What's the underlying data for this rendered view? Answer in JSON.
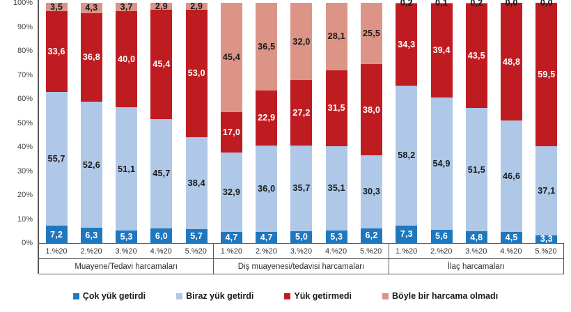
{
  "chart_data": {
    "type": "bar",
    "subtype": "stacked-100-percent",
    "title": "",
    "xlabel": "",
    "ylabel": "",
    "y_axis": {
      "min": 0,
      "max": 100,
      "step": 10,
      "grid": false,
      "tick_labels": [
        "100%",
        "90%",
        "80%",
        "70%",
        "60%",
        "50%",
        "40%",
        "30%",
        "20%",
        "10%",
        "0%"
      ]
    },
    "categories": [
      "1.%20",
      "2.%20",
      "3.%20",
      "4.%20",
      "5.%20"
    ],
    "series": [
      {
        "name": "Çok yük getirdi",
        "color": "#1f78be",
        "label_color": "#ffffff"
      },
      {
        "name": "Biraz yük getirdi",
        "color": "#afc8e8",
        "label_color": "#1a1a1a"
      },
      {
        "name": "Yük getirmedi",
        "color": "#bf1c22",
        "label_color": "#ffffff"
      },
      {
        "name": "Böyle bir harcama olmadı",
        "color": "#dc9486",
        "label_color": "#1a1a1a"
      }
    ],
    "groups": [
      {
        "label": "Muayene/Tedavi harcamaları",
        "values": [
          [
            7.2,
            55.7,
            33.6,
            3.5
          ],
          [
            6.3,
            52.6,
            36.8,
            4.3
          ],
          [
            5.3,
            51.1,
            40.0,
            3.7
          ],
          [
            6.0,
            45.7,
            45.4,
            2.9
          ],
          [
            5.7,
            38.4,
            53.0,
            2.9
          ]
        ]
      },
      {
        "label": "Diş muayenesi/tedavisi harcamaları",
        "values": [
          [
            4.7,
            32.9,
            17.0,
            45.4
          ],
          [
            4.7,
            36.0,
            22.9,
            36.5
          ],
          [
            5.0,
            35.7,
            27.2,
            32.0
          ],
          [
            5.3,
            35.1,
            31.5,
            28.1
          ],
          [
            6.2,
            30.3,
            38.0,
            25.5
          ]
        ]
      },
      {
        "label": "İlaç harcamaları",
        "values": [
          [
            7.3,
            58.2,
            34.3,
            0.2
          ],
          [
            5.6,
            54.9,
            39.4,
            0.1
          ],
          [
            4.8,
            51.5,
            43.5,
            0.2
          ],
          [
            4.5,
            46.6,
            48.8,
            0.0
          ],
          [
            3.3,
            37.1,
            59.5,
            0.0
          ]
        ]
      }
    ],
    "legend": {
      "position": "bottom",
      "entries": [
        "Çok yük getirdi",
        "Biraz yük getirdi",
        "Yük getirmedi",
        "Böyle bir harcama olmadı"
      ]
    },
    "value_label_decimal_separator": ",",
    "value_label_decimals": 1
  },
  "colors": {
    "background": "#ffffff",
    "axis_line": "#595959",
    "axis_text": "#3f3f3f"
  }
}
